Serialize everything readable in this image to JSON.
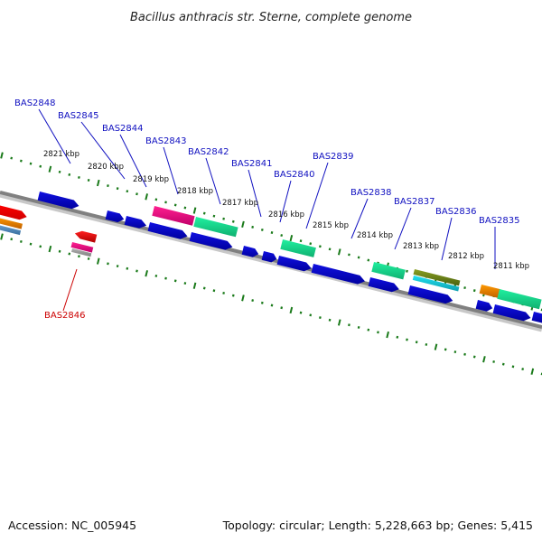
{
  "title": "Bacillus anthracis str. Sterne, complete genome",
  "footer": {
    "accession": "Accession: NC_005945",
    "summary": "Topology: circular; Length: 5,228,663 bp; Genes: 5,415"
  },
  "colors": {
    "backbone": "#808080",
    "tick": "#1a7a1a",
    "label_forward": "#1010c0",
    "label_reverse": "#cc0000",
    "leader_forward": "#1010c0",
    "leader_reverse": "#cc0000"
  },
  "tick_labels": [
    {
      "kbp": 2821,
      "text": "2821 kbp"
    },
    {
      "kbp": 2820,
      "text": "2820 kbp"
    },
    {
      "kbp": 2819,
      "text": "2819 kbp"
    },
    {
      "kbp": 2818,
      "text": "2818 kbp"
    },
    {
      "kbp": 2817,
      "text": "2817 kbp"
    },
    {
      "kbp": 2816,
      "text": "2816 kbp"
    },
    {
      "kbp": 2815,
      "text": "2815 kbp"
    },
    {
      "kbp": 2814,
      "text": "2814 kbp"
    },
    {
      "kbp": 2813,
      "text": "2813 kbp"
    },
    {
      "kbp": 2812,
      "text": "2812 kbp"
    },
    {
      "kbp": 2811,
      "text": "2811 kbp"
    }
  ],
  "gene_labels": [
    {
      "text": "BAS2848",
      "strand": "forward"
    },
    {
      "text": "BAS2845",
      "strand": "forward"
    },
    {
      "text": "BAS2844",
      "strand": "forward"
    },
    {
      "text": "BAS2843",
      "strand": "forward"
    },
    {
      "text": "BAS2842",
      "strand": "forward"
    },
    {
      "text": "BAS2841",
      "strand": "forward"
    },
    {
      "text": "BAS2840",
      "strand": "forward"
    },
    {
      "text": "BAS2839",
      "strand": "forward"
    },
    {
      "text": "BAS2838",
      "strand": "forward"
    },
    {
      "text": "BAS2837",
      "strand": "forward"
    },
    {
      "text": "BAS2836",
      "strand": "forward"
    },
    {
      "text": "BAS2835",
      "strand": "forward"
    },
    {
      "text": "BAS2846",
      "strand": "reverse"
    }
  ]
}
